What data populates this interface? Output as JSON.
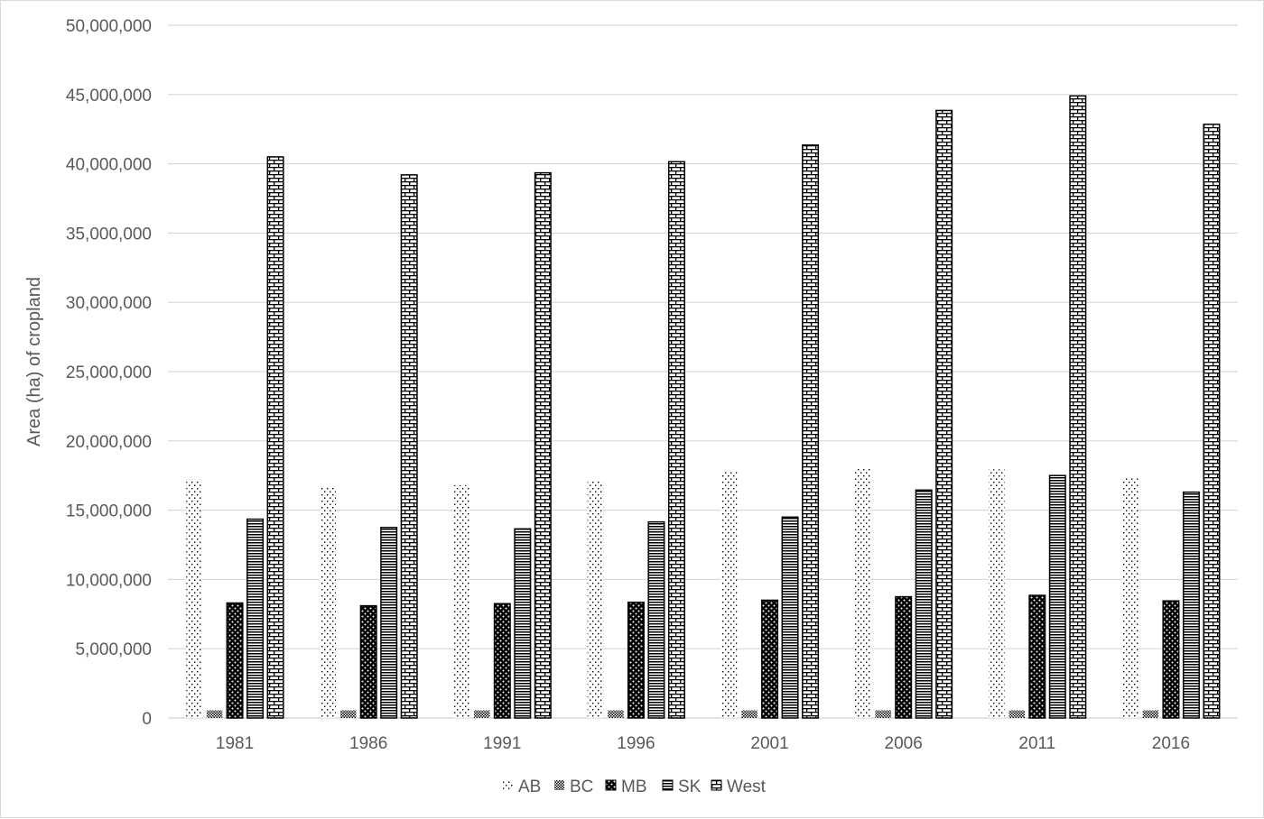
{
  "chart_data": {
    "type": "bar",
    "title": "",
    "xlabel": "",
    "ylabel": "Area (ha) of cropland",
    "ylim": [
      0,
      50000000
    ],
    "y_tick_step": 5000000,
    "grid": "horizontal",
    "legend_position": "bottom-center",
    "categories": [
      "1981",
      "1986",
      "1991",
      "1996",
      "2001",
      "2006",
      "2011",
      "2016"
    ],
    "series": [
      {
        "name": "AB",
        "pattern": "dots-sparse",
        "values": [
          17200000,
          16700000,
          16800000,
          17100000,
          17800000,
          18000000,
          17950000,
          17400000
        ]
      },
      {
        "name": "BC",
        "pattern": "dots-dense",
        "values": [
          550000,
          550000,
          550000,
          550000,
          550000,
          550000,
          550000,
          550000
        ]
      },
      {
        "name": "MB",
        "pattern": "dots-large",
        "values": [
          8300000,
          8100000,
          8250000,
          8350000,
          8500000,
          8750000,
          8850000,
          8450000
        ]
      },
      {
        "name": "SK",
        "pattern": "horizontal-lines",
        "values": [
          14350000,
          13750000,
          13650000,
          14150000,
          14500000,
          16450000,
          17500000,
          16300000
        ]
      },
      {
        "name": "West",
        "pattern": "bricks",
        "values": [
          40500000,
          39200000,
          39350000,
          40150000,
          41350000,
          43850000,
          44900000,
          42850000
        ]
      }
    ]
  },
  "colors": {
    "ink": "#000000",
    "gridline": "#d9d9d9",
    "axis_text": "#595959",
    "border": "#d9d9d9"
  }
}
